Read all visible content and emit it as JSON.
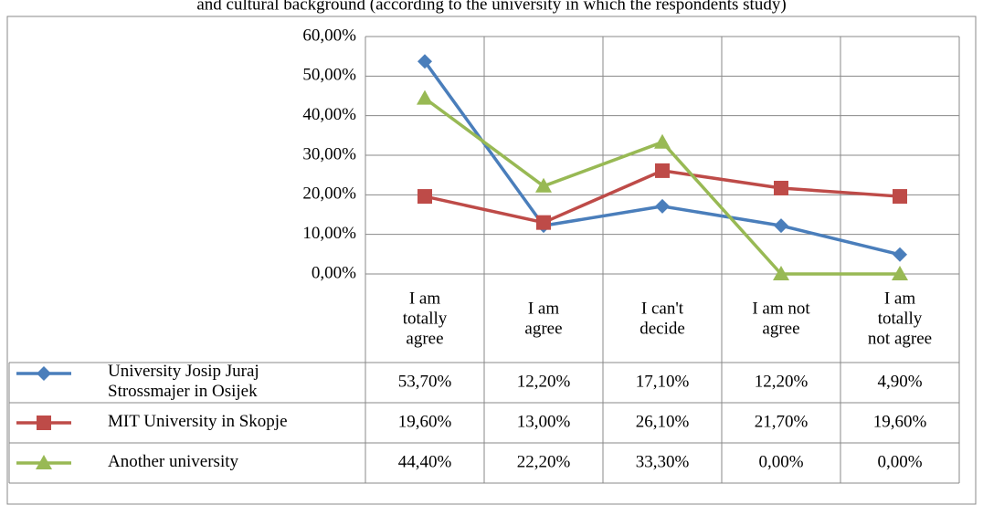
{
  "chart_data": {
    "type": "line",
    "title": "and cultural background (according to the university in which the respondents study)",
    "categories": [
      "I am\ntotally\nagree",
      "I am\nagree",
      "I can't\ndecide",
      "I am not\nagree",
      "I am\ntotally\nnot agree"
    ],
    "ylim": [
      0,
      60
    ],
    "yticks": [
      {
        "value": 0,
        "label": "0,00%"
      },
      {
        "value": 10,
        "label": "10,00%"
      },
      {
        "value": 20,
        "label": "20,00%"
      },
      {
        "value": 30,
        "label": "30,00%"
      },
      {
        "value": 40,
        "label": "40,00%"
      },
      {
        "value": 50,
        "label": "50,00%"
      },
      {
        "value": 60,
        "label": "60,00%"
      }
    ],
    "grid": true,
    "series": [
      {
        "name": "University Josip Juraj\nStrossmajer in Osijek",
        "color": "#4a7ebb",
        "marker": "diamond",
        "values": [
          53.7,
          12.2,
          17.1,
          12.2,
          4.9
        ],
        "value_labels": [
          "53,70%",
          "12,20%",
          "17,10%",
          "12,20%",
          "4,90%"
        ]
      },
      {
        "name": "MIT University in Skopje",
        "color": "#be4b48",
        "marker": "square",
        "values": [
          19.6,
          13.0,
          26.1,
          21.7,
          19.6
        ],
        "value_labels": [
          "19,60%",
          "13,00%",
          "26,10%",
          "21,70%",
          "19,60%"
        ]
      },
      {
        "name": "Another university",
        "color": "#98b954",
        "marker": "triangle",
        "values": [
          44.4,
          22.2,
          33.3,
          0.0,
          0.0
        ],
        "value_labels": [
          "44,40%",
          "22,20%",
          "33,30%",
          "0,00%",
          "0,00%"
        ]
      }
    ]
  }
}
